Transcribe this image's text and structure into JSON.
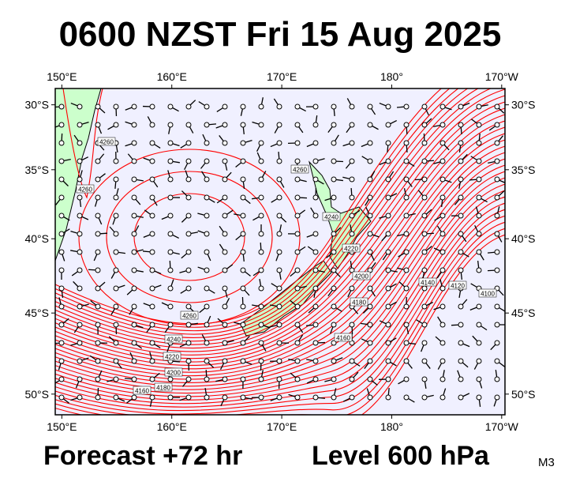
{
  "title": "0600 NZST Fri 15 Aug 2025",
  "footer": {
    "forecast": "Forecast +72 hr",
    "level": "Level 600 hPa",
    "model": "M3"
  },
  "map": {
    "projection": "mercator",
    "lonlim": [
      149.4,
      190.3
    ],
    "latlim": [
      -28.7,
      -51.2
    ],
    "lonticks": [
      {
        "value": 150,
        "label": "150°E"
      },
      {
        "value": 160,
        "label": "160°E"
      },
      {
        "value": 170,
        "label": "170°E"
      },
      {
        "value": 180,
        "label": "180°"
      },
      {
        "value": 190,
        "label": "170°W"
      }
    ],
    "latticks": [
      {
        "value": -30,
        "label": "30°S"
      },
      {
        "value": -35,
        "label": "35°S"
      },
      {
        "value": -40,
        "label": "40°S"
      },
      {
        "value": -45,
        "label": "45°S"
      },
      {
        "value": -50,
        "label": "50°S"
      }
    ],
    "contour_labels": [
      "4260",
      "4260",
      "4260",
      "4260",
      "4240",
      "4220",
      "4200",
      "4180",
      "4160",
      "4240",
      "4220",
      "4200",
      "4180",
      "4160",
      "4140",
      "4120",
      "4100"
    ]
  }
}
